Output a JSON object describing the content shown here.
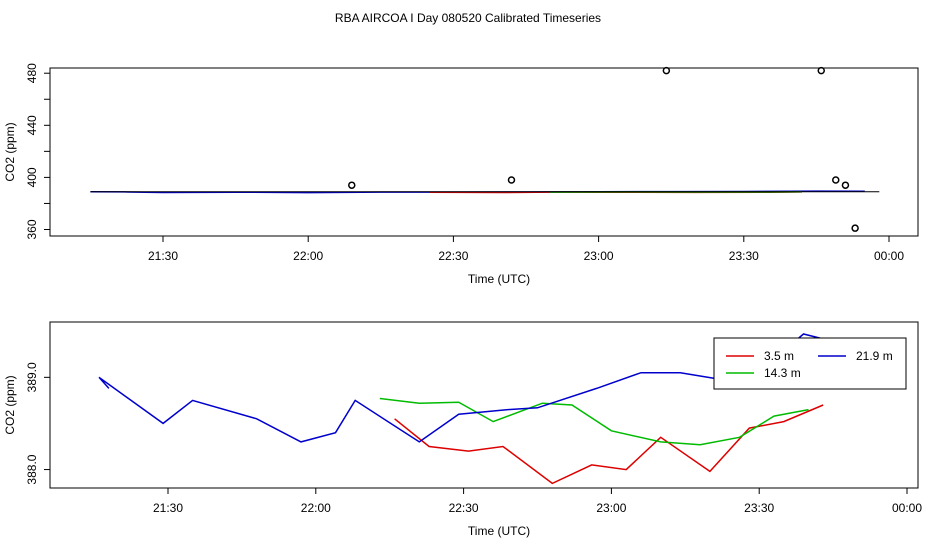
{
  "title": "RBA AIRCOA I  Day 080520  Calibrated Timeseries",
  "chart_data": [
    {
      "type": "line",
      "xlabel": "Time (UTC)",
      "ylabel": "CO2 (ppm)",
      "xticks": [
        "21:30",
        "22:00",
        "22:30",
        "23:00",
        "23:30",
        "00:00"
      ],
      "xlim": [
        "21:13",
        "00:06"
      ],
      "yticks": [
        360,
        380,
        400,
        420,
        440,
        460,
        480
      ],
      "ytick_labels": [
        "360",
        "",
        "400",
        "440",
        "",
        "480"
      ],
      "ylim": [
        355,
        484
      ],
      "series": [
        {
          "color": "#0000cc",
          "x": [
            "21:15",
            "21:22",
            "21:30",
            "21:45",
            "22:00",
            "22:15",
            "22:30",
            "22:45",
            "23:00",
            "23:15",
            "23:30",
            "23:45",
            "23:55"
          ],
          "values": [
            389.0,
            388.9,
            388.4,
            388.6,
            388.3,
            388.7,
            388.7,
            388.8,
            389.0,
            389.1,
            389.2,
            389.5,
            389.3
          ]
        },
        {
          "color": "#cc0000",
          "x": [
            "22:25",
            "22:40",
            "22:50",
            "23:00",
            "23:20",
            "23:35",
            "23:42"
          ],
          "values": [
            388.6,
            388.4,
            388.7,
            388.6,
            388.5,
            388.6,
            388.9
          ]
        },
        {
          "color": "#00aa00",
          "x": [
            "22:50",
            "23:05",
            "23:20",
            "23:35",
            "23:42"
          ],
          "values": [
            388.7,
            388.9,
            388.8,
            388.8,
            389.0
          ]
        }
      ],
      "points": {
        "x": [
          "22:09",
          "22:42",
          "23:14",
          "23:46",
          "23:49",
          "23:51",
          "23:53"
        ],
        "values": [
          394,
          398,
          482,
          482,
          398,
          394,
          361
        ]
      }
    },
    {
      "type": "line",
      "xlabel": "Time (UTC)",
      "ylabel": "CO2 (ppm)",
      "xticks": [
        "21:30",
        "22:00",
        "22:30",
        "23:00",
        "23:30",
        "00:00"
      ],
      "xlim": [
        "21:13",
        "00:06"
      ],
      "yticks": [
        388.0,
        389.0
      ],
      "ytick_labels": [
        "388.0",
        "389.0"
      ],
      "ylim": [
        387.8,
        389.6
      ],
      "legend": {
        "position": "top-right",
        "entries": [
          {
            "label": "3.5 m",
            "color": "#dd0000"
          },
          {
            "label": "21.9 m",
            "color": "#0000cc"
          },
          {
            "label": "14.3 m",
            "color": "#00bb00"
          }
        ]
      },
      "series": [
        {
          "name": "3.5 m",
          "color": "#dd0000",
          "x": [
            "22:16",
            "22:23",
            "22:31",
            "22:38",
            "22:48",
            "22:56",
            "23:03",
            "23:10",
            "23:20",
            "23:28",
            "23:35",
            "23:43"
          ],
          "values": [
            388.55,
            388.25,
            388.2,
            388.25,
            387.85,
            388.05,
            388.0,
            388.35,
            387.98,
            388.45,
            388.52,
            388.7
          ]
        },
        {
          "name": "14.3 m",
          "color": "#00bb00",
          "x": [
            "22:13",
            "22:21",
            "22:29",
            "22:36",
            "22:46",
            "22:52",
            "23:00",
            "23:10",
            "23:18",
            "23:26",
            "23:33",
            "23:40"
          ],
          "values": [
            388.77,
            388.72,
            388.73,
            388.52,
            388.72,
            388.7,
            388.42,
            388.3,
            388.27,
            388.35,
            388.58,
            388.65
          ]
        },
        {
          "name": "21.9 m",
          "color": "#0000cc",
          "x": [
            "21:16",
            "21:18",
            "21:16",
            "21:29",
            "21:35",
            "21:48",
            "21:57",
            "22:04",
            "22:08",
            "22:21",
            "22:29",
            "22:39",
            "22:45",
            "22:57",
            "23:06",
            "23:14",
            "23:22",
            "23:28",
            "23:33",
            "23:39",
            "23:48",
            "23:55"
          ],
          "values": [
            389.0,
            388.88,
            389.0,
            388.5,
            388.75,
            388.55,
            388.3,
            388.4,
            388.75,
            388.3,
            388.6,
            388.65,
            388.67,
            388.88,
            389.05,
            389.05,
            388.98,
            388.9,
            389.2,
            389.47,
            389.35,
            389.25
          ]
        }
      ]
    }
  ]
}
